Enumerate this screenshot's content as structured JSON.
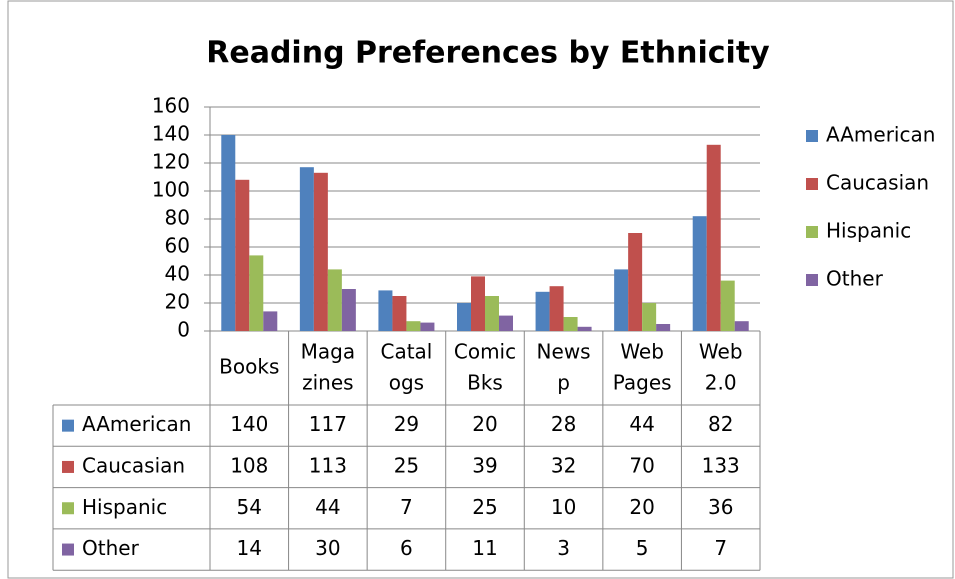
{
  "chart_data": {
    "type": "bar",
    "title": "Reading Preferences by Ethnicity",
    "categories": [
      "Books",
      "Maga zines",
      "Catal ogs",
      "Comic Bks",
      "News p",
      "Web Pages",
      "Web 2.0"
    ],
    "series": [
      {
        "name": "AAmerican",
        "color": "#4f81bd",
        "values": [
          140,
          117,
          29,
          20,
          28,
          44,
          82
        ]
      },
      {
        "name": "Caucasian",
        "color": "#c0504d",
        "values": [
          108,
          113,
          25,
          39,
          32,
          70,
          133
        ]
      },
      {
        "name": "Hispanic",
        "color": "#9bbb59",
        "values": [
          54,
          44,
          7,
          25,
          10,
          20,
          36
        ]
      },
      {
        "name": "Other",
        "color": "#8064a2",
        "values": [
          14,
          30,
          6,
          11,
          3,
          5,
          7
        ]
      }
    ],
    "ylim": [
      0,
      160
    ],
    "yticks": [
      0,
      20,
      40,
      60,
      80,
      100,
      120,
      140,
      160
    ],
    "grid": true,
    "legend": "right",
    "data_table": true
  }
}
